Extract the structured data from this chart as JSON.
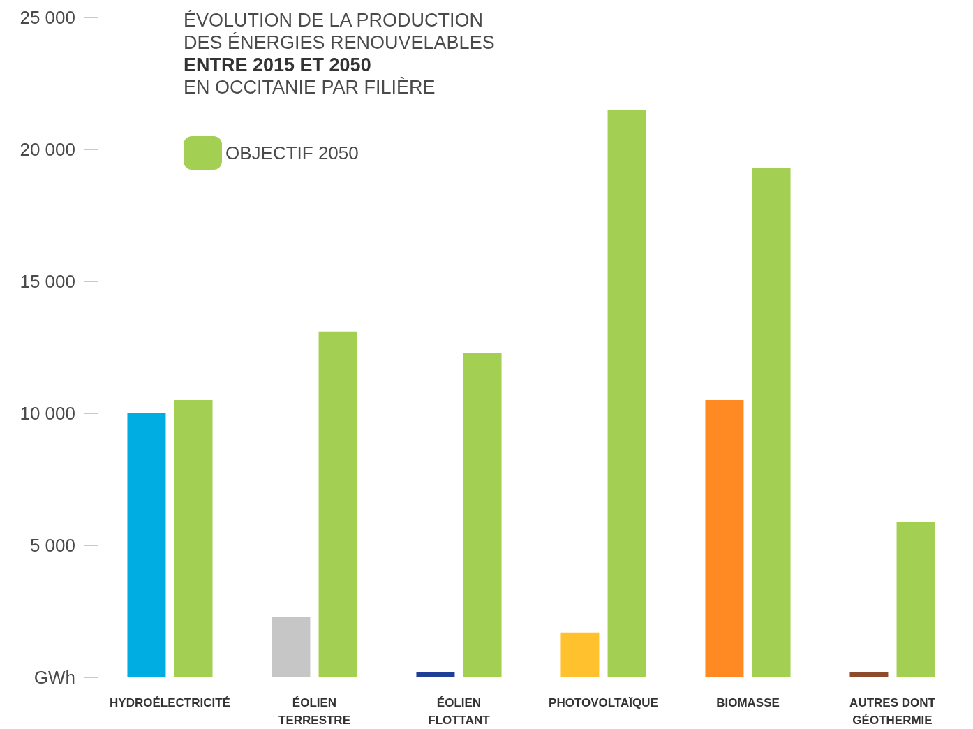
{
  "chart_data": {
    "type": "bar",
    "title": "ÉVOLUTION DE LA PRODUCTION\nDES ÉNERGIES RENOUVELABLES\nENTRE 2015 ET 2050\nEN OCCITANIE PAR FILIÈRE",
    "categories": [
      "HYDROÉLECTRICITÉ",
      "ÉOLIEN\nTERRESTRE",
      "ÉOLIEN\nFLOTTANT",
      "PHOTOVOLTAÏQUE",
      "BIOMASSE",
      "AUTRES DONT\nGÉOTHERMIE"
    ],
    "series": [
      {
        "colors": [
          "#00ade2",
          "#c6c6c6",
          "#1f3e97",
          "#ffc12e",
          "#ff8a24",
          "#8e4b2c"
        ],
        "values": [
          10000,
          2300,
          200,
          1700,
          10500,
          200
        ]
      },
      {
        "name": "OBJECTIF 2050",
        "color": "#a3cf53",
        "values": [
          10500,
          13100,
          12300,
          21500,
          19300,
          5900
        ]
      }
    ],
    "ylim": [
      0,
      25000
    ],
    "yticks": [
      {
        "value": 0,
        "label": "GWh"
      },
      {
        "value": 5000,
        "label": "5 000"
      },
      {
        "value": 10000,
        "label": "10 000"
      },
      {
        "value": 15000,
        "label": "15 000"
      },
      {
        "value": 20000,
        "label": "20 000"
      },
      {
        "value": 25000,
        "label": "25 000"
      }
    ],
    "grid": false,
    "legend": "top left"
  }
}
